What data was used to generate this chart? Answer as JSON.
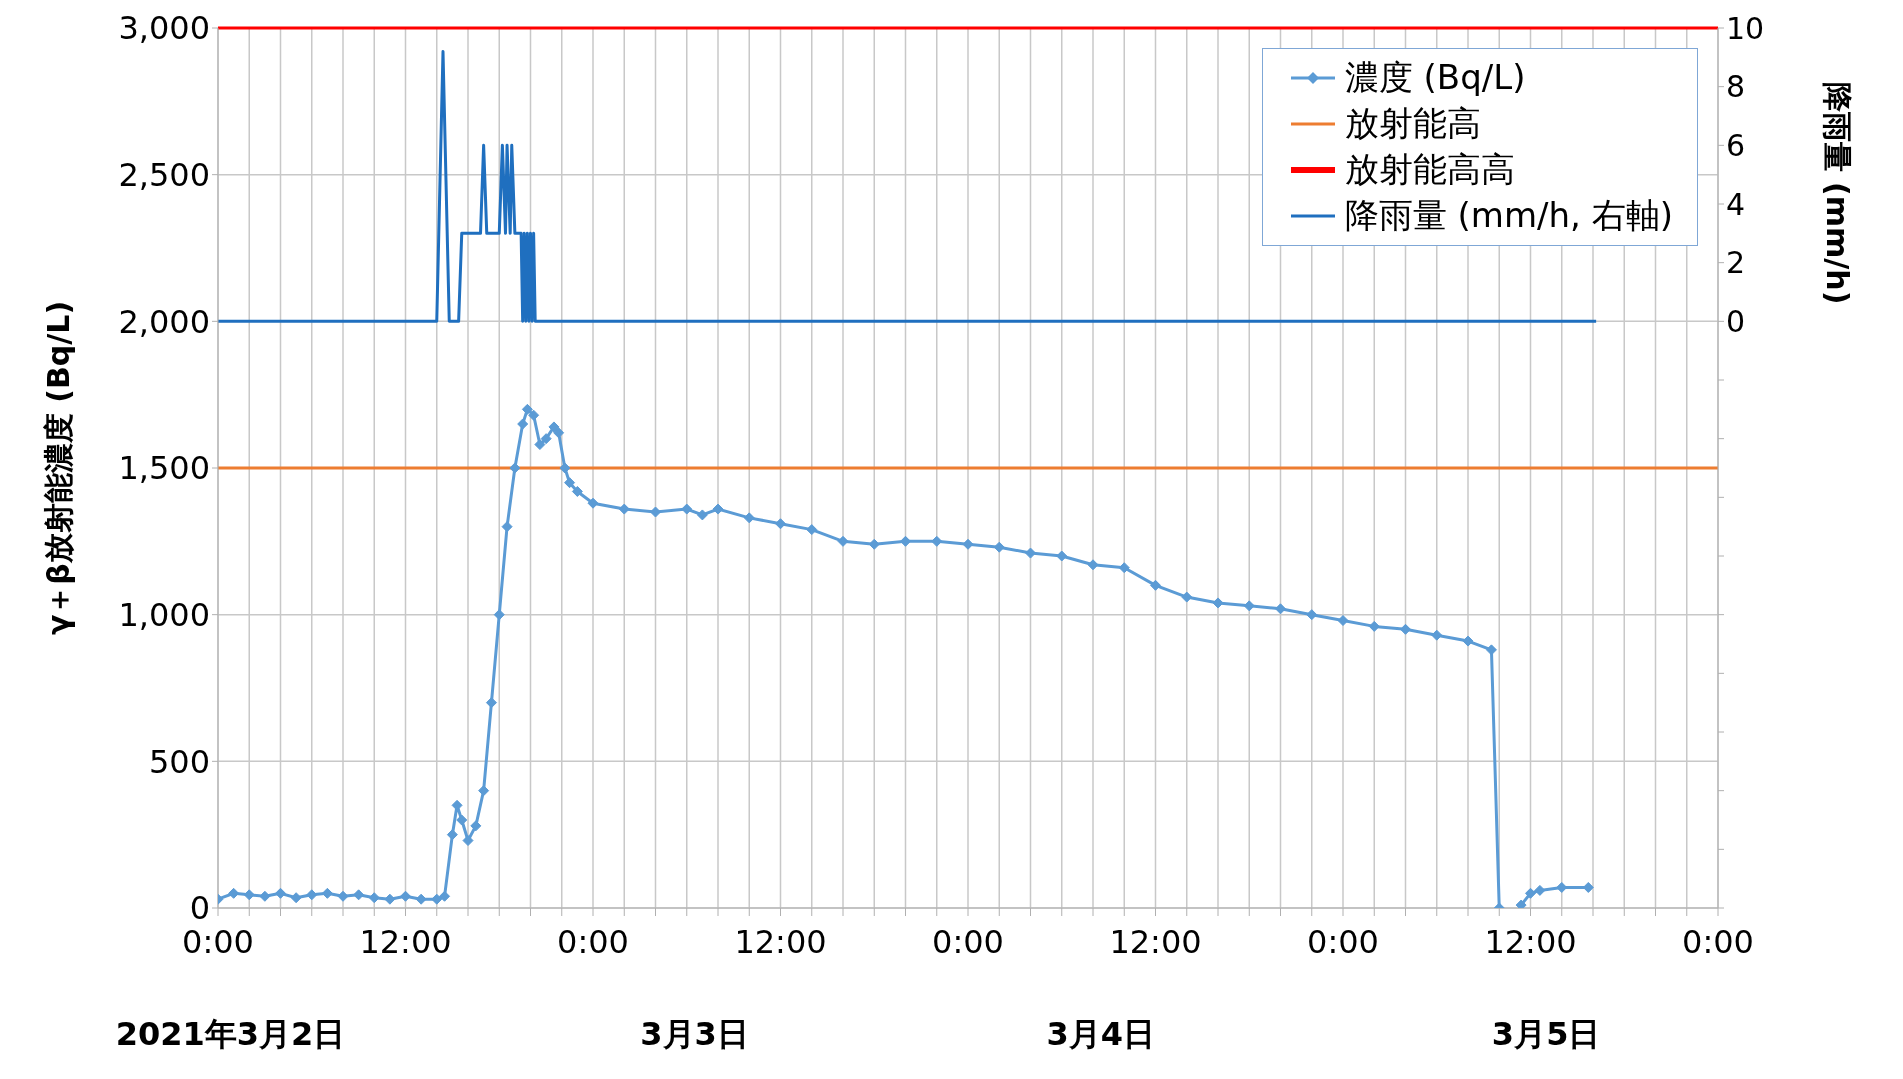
{
  "chart_data": {
    "type": "line",
    "ylabel": "γ＋β放射能濃度 (Bq/L)",
    "y2label": "降雨量 (mm/h)",
    "annotations": [
      "2021年3月2日",
      "3月3日",
      "3月4日",
      "3月5日"
    ],
    "xlim": [
      "2021-03-02T00:00",
      "2021-03-06T00:00"
    ],
    "xticks": [
      {
        "value": "2021-03-02T00:00",
        "label": "0:00"
      },
      {
        "value": "2021-03-02T02:00",
        "label": null
      },
      {
        "value": "2021-03-02T04:00",
        "label": null
      },
      {
        "value": "2021-03-02T06:00",
        "label": null
      },
      {
        "value": "2021-03-02T08:00",
        "label": null
      },
      {
        "value": "2021-03-02T10:00",
        "label": null
      },
      {
        "value": "2021-03-02T12:00",
        "label": "12:00"
      },
      {
        "value": "2021-03-02T14:00",
        "label": null
      },
      {
        "value": "2021-03-02T16:00",
        "label": null
      },
      {
        "value": "2021-03-02T18:00",
        "label": null
      },
      {
        "value": "2021-03-02T20:00",
        "label": null
      },
      {
        "value": "2021-03-02T22:00",
        "label": null
      },
      {
        "value": "2021-03-03T00:00",
        "label": "0:00"
      },
      {
        "value": "2021-03-03T02:00",
        "label": null
      },
      {
        "value": "2021-03-03T04:00",
        "label": null
      },
      {
        "value": "2021-03-03T06:00",
        "label": null
      },
      {
        "value": "2021-03-03T08:00",
        "label": null
      },
      {
        "value": "2021-03-03T10:00",
        "label": null
      },
      {
        "value": "2021-03-03T12:00",
        "label": "12:00"
      },
      {
        "value": "2021-03-03T14:00",
        "label": null
      },
      {
        "value": "2021-03-03T16:00",
        "label": null
      },
      {
        "value": "2021-03-03T18:00",
        "label": null
      },
      {
        "value": "2021-03-03T20:00",
        "label": null
      },
      {
        "value": "2021-03-03T22:00",
        "label": null
      },
      {
        "value": "2021-03-04T00:00",
        "label": "0:00"
      },
      {
        "value": "2021-03-04T02:00",
        "label": null
      },
      {
        "value": "2021-03-04T04:00",
        "label": null
      },
      {
        "value": "2021-03-04T06:00",
        "label": null
      },
      {
        "value": "2021-03-04T08:00",
        "label": null
      },
      {
        "value": "2021-03-04T10:00",
        "label": null
      },
      {
        "value": "2021-03-04T12:00",
        "label": "12:00"
      },
      {
        "value": "2021-03-04T14:00",
        "label": null
      },
      {
        "value": "2021-03-04T16:00",
        "label": null
      },
      {
        "value": "2021-03-04T18:00",
        "label": null
      },
      {
        "value": "2021-03-04T20:00",
        "label": null
      },
      {
        "value": "2021-03-04T22:00",
        "label": null
      },
      {
        "value": "2021-03-05T00:00",
        "label": "0:00"
      },
      {
        "value": "2021-03-05T02:00",
        "label": null
      },
      {
        "value": "2021-03-05T04:00",
        "label": null
      },
      {
        "value": "2021-03-05T06:00",
        "label": null
      },
      {
        "value": "2021-03-05T08:00",
        "label": null
      },
      {
        "value": "2021-03-05T10:00",
        "label": null
      },
      {
        "value": "2021-03-05T12:00",
        "label": "12:00"
      },
      {
        "value": "2021-03-05T14:00",
        "label": null
      },
      {
        "value": "2021-03-05T16:00",
        "label": null
      },
      {
        "value": "2021-03-05T18:00",
        "label": null
      },
      {
        "value": "2021-03-05T20:00",
        "label": null
      },
      {
        "value": "2021-03-05T22:00",
        "label": null
      },
      {
        "value": "2021-03-06T00:00",
        "label": "0:00"
      }
    ],
    "ylim": [
      0,
      3000
    ],
    "yticks": [
      0,
      {
        "value": 500,
        "label": "500"
      },
      {
        "value": 1000,
        "label": "1,000"
      },
      {
        "value": 1500,
        "label": "1,500"
      },
      {
        "value": 2000,
        "label": "2,000"
      },
      {
        "value": 2500,
        "label": "2,500"
      },
      {
        "value": 3000,
        "label": "3,000"
      }
    ],
    "y2lim": [
      -20,
      10
    ],
    "y2ticks": [
      {
        "value": -20,
        "label": null
      },
      {
        "value": -18,
        "label": null
      },
      {
        "value": -16,
        "label": null
      },
      {
        "value": -14,
        "label": null
      },
      {
        "value": -12,
        "label": null
      },
      {
        "value": -10,
        "label": null
      },
      {
        "value": -8,
        "label": null
      },
      {
        "value": -6,
        "label": null
      },
      {
        "value": -4,
        "label": null
      },
      {
        "value": -2,
        "label": null
      },
      0,
      2,
      4,
      6,
      8,
      10
    ],
    "grid": true,
    "legend": "top right",
    "line_style": "solid",
    "ref_lines": [
      {
        "axis": "y",
        "value": 1500,
        "label": "放射能高",
        "color": "#ed7d31"
      },
      {
        "axis": "y",
        "value": 3000,
        "label": "放射能高高",
        "color": "#ff0000"
      }
    ],
    "series": [
      {
        "name": "濃度 (Bq/L)",
        "color": "#5b9bd5",
        "marker": "diamond",
        "x": [
          "2021-03-02T00:00",
          "2021-03-02T01:00",
          "2021-03-02T02:00",
          "2021-03-02T03:00",
          "2021-03-02T04:00",
          "2021-03-02T05:00",
          "2021-03-02T06:00",
          "2021-03-02T07:00",
          "2021-03-02T08:00",
          "2021-03-02T09:00",
          "2021-03-02T10:00",
          "2021-03-02T11:00",
          "2021-03-02T12:00",
          "2021-03-02T13:00",
          "2021-03-02T14:00",
          "2021-03-02T14:30",
          "2021-03-02T15:00",
          "2021-03-02T15:18",
          "2021-03-02T15:36",
          "2021-03-02T16:00",
          "2021-03-02T16:30",
          "2021-03-02T17:00",
          "2021-03-02T17:30",
          "2021-03-02T18:00",
          "2021-03-02T18:30",
          "2021-03-02T19:00",
          "2021-03-02T19:30",
          "2021-03-02T19:48",
          "2021-03-02T20:12",
          "2021-03-02T20:36",
          "2021-03-02T21:00",
          "2021-03-02T21:30",
          "2021-03-02T21:48",
          "2021-03-02T22:12",
          "2021-03-02T22:30",
          "2021-03-02T23:00",
          "2021-03-03T00:00",
          "2021-03-03T02:00",
          "2021-03-03T04:00",
          "2021-03-03T06:00",
          "2021-03-03T07:00",
          "2021-03-03T08:00",
          "2021-03-03T10:00",
          "2021-03-03T12:00",
          "2021-03-03T14:00",
          "2021-03-03T16:00",
          "2021-03-03T18:00",
          "2021-03-03T20:00",
          "2021-03-03T22:00",
          "2021-03-04T00:00",
          "2021-03-04T02:00",
          "2021-03-04T04:00",
          "2021-03-04T06:00",
          "2021-03-04T08:00",
          "2021-03-04T10:00",
          "2021-03-04T12:00",
          "2021-03-04T14:00",
          "2021-03-04T16:00",
          "2021-03-04T18:00",
          "2021-03-04T20:00",
          "2021-03-04T22:00",
          "2021-03-05T00:00",
          "2021-03-05T02:00",
          "2021-03-05T04:00",
          "2021-03-05T06:00",
          "2021-03-05T08:00",
          "2021-03-05T09:30",
          "2021-03-05T10:00",
          "2021-03-05T10:42",
          "2021-03-05T11:24",
          "2021-03-05T12:00",
          "2021-03-05T12:36",
          "2021-03-05T14:00",
          "2021-03-05T15:42"
        ],
        "values": [
          30,
          50,
          45,
          40,
          50,
          35,
          45,
          50,
          40,
          45,
          35,
          30,
          40,
          30,
          30,
          40,
          250,
          350,
          300,
          230,
          280,
          400,
          700,
          1000,
          1300,
          1500,
          1650,
          1700,
          1680,
          1580,
          1600,
          1640,
          1620,
          1500,
          1450,
          1420,
          1380,
          1360,
          1350,
          1360,
          1340,
          1360,
          1330,
          1310,
          1290,
          1250,
          1240,
          1250,
          1250,
          1240,
          1230,
          1210,
          1200,
          1170,
          1160,
          1100,
          1060,
          1040,
          1030,
          1020,
          1000,
          980,
          960,
          950,
          930,
          910,
          880,
          0,
          null,
          10,
          50,
          60,
          70,
          70
        ]
      },
      {
        "name": "降雨量 (mm/h, 右軸)",
        "color": "#1f6fbf",
        "marker": "none",
        "axis": "y2",
        "x": [
          "2021-03-02T00:00",
          "2021-03-02T14:00",
          "2021-03-02T14:24",
          "2021-03-02T14:48",
          "2021-03-02T15:24",
          "2021-03-02T15:36",
          "2021-03-02T16:48",
          "2021-03-02T17:00",
          "2021-03-02T17:12",
          "2021-03-02T18:00",
          "2021-03-02T18:12",
          "2021-03-02T18:24",
          "2021-03-02T18:30",
          "2021-03-02T18:42",
          "2021-03-02T18:48",
          "2021-03-02T19:00",
          "2021-03-02T19:24",
          "2021-03-02T19:30",
          "2021-03-02T19:36",
          "2021-03-02T19:42",
          "2021-03-02T19:48",
          "2021-03-02T19:54",
          "2021-03-02T20:00",
          "2021-03-02T20:06",
          "2021-03-02T20:12",
          "2021-03-02T20:18",
          "2021-03-05T16:12"
        ],
        "values": [
          0,
          0,
          9.2,
          0,
          0,
          3,
          3,
          6,
          3,
          3,
          6,
          3,
          6,
          3,
          6,
          3,
          3,
          0,
          3,
          0,
          3,
          0,
          3,
          0,
          3,
          0,
          0
        ]
      }
    ]
  }
}
